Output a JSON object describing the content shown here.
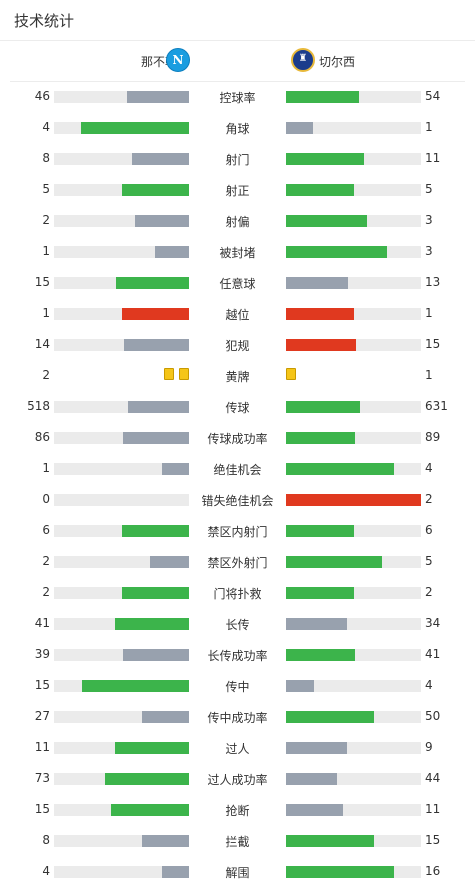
{
  "page": {
    "title": "技术统计"
  },
  "teams": {
    "home": {
      "name": "那不勒斯",
      "logo_icon": "napoli-logo-icon"
    },
    "away": {
      "name": "切尔西",
      "logo_icon": "chelsea-logo-icon"
    }
  },
  "colors": {
    "track": "#ebebeb",
    "green": "#3cb44b",
    "gray": "#98a1ae",
    "red": "#e0391f",
    "card_yellow": "#f5c518"
  },
  "stats": [
    {
      "label": "控球率",
      "home": "46",
      "away": "54",
      "home_pct": 46,
      "away_pct": 54,
      "home_color": "gray",
      "away_color": "green"
    },
    {
      "label": "角球",
      "home": "4",
      "away": "1",
      "home_pct": 80,
      "away_pct": 20,
      "home_color": "green",
      "away_color": "gray"
    },
    {
      "label": "射门",
      "home": "8",
      "away": "11",
      "home_pct": 42,
      "away_pct": 58,
      "home_color": "gray",
      "away_color": "green"
    },
    {
      "label": "射正",
      "home": "5",
      "away": "5",
      "home_pct": 50,
      "away_pct": 50,
      "home_color": "green",
      "away_color": "green"
    },
    {
      "label": "射偏",
      "home": "2",
      "away": "3",
      "home_pct": 40,
      "away_pct": 60,
      "home_color": "gray",
      "away_color": "green"
    },
    {
      "label": "被封堵",
      "home": "1",
      "away": "3",
      "home_pct": 25,
      "away_pct": 75,
      "home_color": "gray",
      "away_color": "green"
    },
    {
      "label": "任意球",
      "home": "15",
      "away": "13",
      "home_pct": 54,
      "away_pct": 46,
      "home_color": "green",
      "away_color": "gray"
    },
    {
      "label": "越位",
      "home": "1",
      "away": "1",
      "home_pct": 50,
      "away_pct": 50,
      "home_color": "red",
      "away_color": "red"
    },
    {
      "label": "犯规",
      "home": "14",
      "away": "15",
      "home_pct": 48,
      "away_pct": 52,
      "home_color": "gray",
      "away_color": "red"
    },
    {
      "label": "黄牌",
      "home": "2",
      "away": "1",
      "type": "cards",
      "home_cards": 2,
      "away_cards": 1
    },
    {
      "label": "传球",
      "home": "518",
      "away": "631",
      "home_pct": 45,
      "away_pct": 55,
      "home_color": "gray",
      "away_color": "green"
    },
    {
      "label": "传球成功率",
      "home": "86",
      "away": "89",
      "home_pct": 49,
      "away_pct": 51,
      "home_color": "gray",
      "away_color": "green"
    },
    {
      "label": "绝佳机会",
      "home": "1",
      "away": "4",
      "home_pct": 20,
      "away_pct": 80,
      "home_color": "gray",
      "away_color": "green"
    },
    {
      "label": "错失绝佳机会",
      "home": "0",
      "away": "2",
      "home_pct": 0,
      "away_pct": 100,
      "home_color": "gray",
      "away_color": "red"
    },
    {
      "label": "禁区内射门",
      "home": "6",
      "away": "6",
      "home_pct": 50,
      "away_pct": 50,
      "home_color": "green",
      "away_color": "green"
    },
    {
      "label": "禁区外射门",
      "home": "2",
      "away": "5",
      "home_pct": 29,
      "away_pct": 71,
      "home_color": "gray",
      "away_color": "green"
    },
    {
      "label": "门将扑救",
      "home": "2",
      "away": "2",
      "home_pct": 50,
      "away_pct": 50,
      "home_color": "green",
      "away_color": "green"
    },
    {
      "label": "长传",
      "home": "41",
      "away": "34",
      "home_pct": 55,
      "away_pct": 45,
      "home_color": "green",
      "away_color": "gray"
    },
    {
      "label": "长传成功率",
      "home": "39",
      "away": "41",
      "home_pct": 49,
      "away_pct": 51,
      "home_color": "gray",
      "away_color": "green"
    },
    {
      "label": "传中",
      "home": "15",
      "away": "4",
      "home_pct": 79,
      "away_pct": 21,
      "home_color": "green",
      "away_color": "gray"
    },
    {
      "label": "传中成功率",
      "home": "27",
      "away": "50",
      "home_pct": 35,
      "away_pct": 65,
      "home_color": "gray",
      "away_color": "green"
    },
    {
      "label": "过人",
      "home": "11",
      "away": "9",
      "home_pct": 55,
      "away_pct": 45,
      "home_color": "green",
      "away_color": "gray"
    },
    {
      "label": "过人成功率",
      "home": "73",
      "away": "44",
      "home_pct": 62,
      "away_pct": 38,
      "home_color": "green",
      "away_color": "gray"
    },
    {
      "label": "抢断",
      "home": "15",
      "away": "11",
      "home_pct": 58,
      "away_pct": 42,
      "home_color": "green",
      "away_color": "gray"
    },
    {
      "label": "拦截",
      "home": "8",
      "away": "15",
      "home_pct": 35,
      "away_pct": 65,
      "home_color": "gray",
      "away_color": "green"
    },
    {
      "label": "解围",
      "home": "4",
      "away": "16",
      "home_pct": 20,
      "away_pct": 80,
      "home_color": "gray",
      "away_color": "green"
    }
  ]
}
